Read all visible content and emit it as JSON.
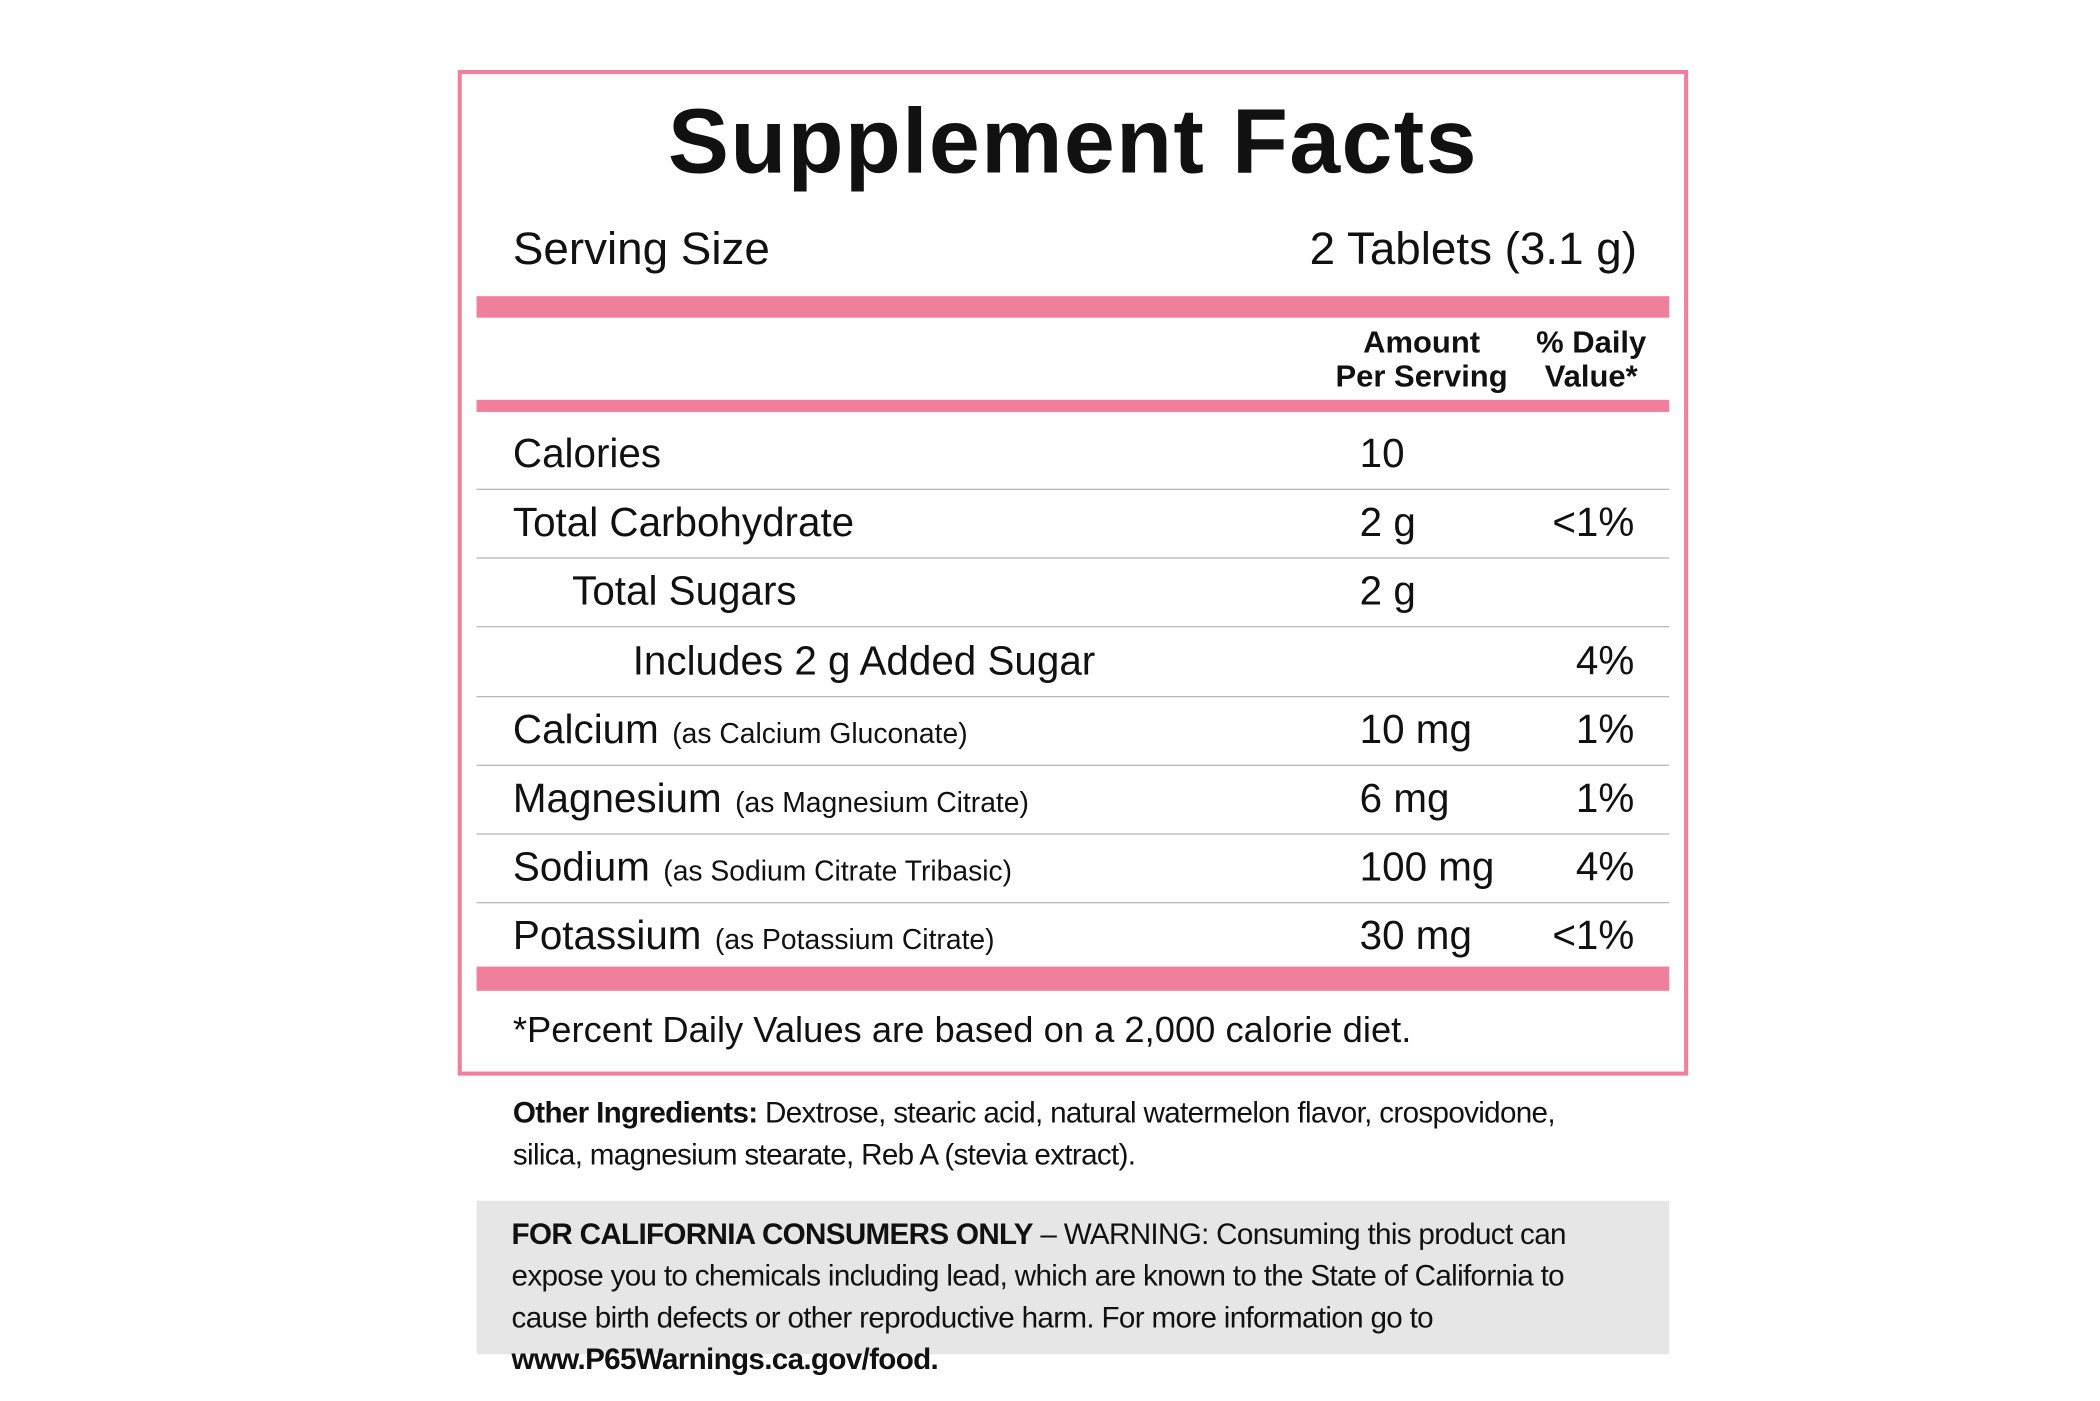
{
  "title": "Supplement Facts",
  "serving_size": {
    "label": "Serving Size",
    "value": "2 Tablets (3.1 g)"
  },
  "columns": {
    "amount": [
      "Amount",
      "Per Serving"
    ],
    "daily_value": [
      "% Daily",
      "Value*"
    ]
  },
  "rows": [
    {
      "name": "Calories",
      "amount": "10"
    },
    {
      "name": "Total Carbohydrate",
      "amount": "2 g",
      "daily_value": "<1%"
    },
    {
      "name": "Total Sugars",
      "amount": "2 g"
    },
    {
      "name": "Includes 2 g Added Sugar",
      "daily_value": "4%"
    },
    {
      "name": "Calcium",
      "note": "(as Calcium Gluconate)",
      "amount": "10 mg",
      "daily_value": "1%"
    },
    {
      "name": "Magnesium",
      "note": "(as Magnesium Citrate)",
      "amount": "6 mg",
      "daily_value": "1%"
    },
    {
      "name": "Sodium",
      "note": "(as Sodium Citrate Tribasic)",
      "amount": "100 mg",
      "daily_value": "4%"
    },
    {
      "name": "Potassium",
      "note": "(as Potassium Citrate)",
      "amount": "30 mg",
      "daily_value": "<1%"
    }
  ],
  "footnote": "*Percent Daily Values are based on a 2,000 calorie diet.",
  "other_ingredients": {
    "label": "Other Ingredients:",
    "text": " Dextrose, stearic acid, natural watermelon flavor, crospovidone, silica, magnesium stearate, Reb A (stevia extract)."
  },
  "warning": {
    "label": "FOR CALIFORNIA CONSUMERS ONLY",
    "text": " – WARNING: Consuming this product can expose you to chemicals including lead, which are known to the State of California to cause birth defects or other reproductive harm. For more information go to ",
    "link": "www.P65Warnings.ca.gov/food."
  }
}
